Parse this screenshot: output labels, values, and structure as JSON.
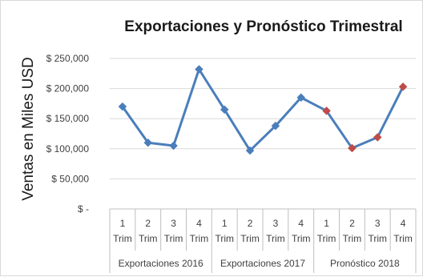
{
  "chart_data": {
    "type": "line",
    "title": "Exportaciones y Pronóstico Trimestral",
    "ylabel": "Ventas en Miles USD",
    "xlabel": "",
    "ylim": [
      0,
      250000
    ],
    "yticks": [
      0,
      50000,
      100000,
      150000,
      200000,
      250000
    ],
    "ytick_labels": [
      "$ -",
      "$ 50,000",
      "$ 100,000",
      "$ 150,000",
      "$ 200,000",
      "$ 250,000"
    ],
    "grid": true,
    "legend": "none",
    "categories": [
      {
        "line1": "1",
        "line2": "Trim"
      },
      {
        "line1": "2",
        "line2": "Trim"
      },
      {
        "line1": "3",
        "line2": "Trim"
      },
      {
        "line1": "4",
        "line2": "Trim"
      },
      {
        "line1": "1",
        "line2": "Trim"
      },
      {
        "line1": "2",
        "line2": "Trim"
      },
      {
        "line1": "3",
        "line2": "Trim"
      },
      {
        "line1": "4",
        "line2": "Trim"
      },
      {
        "line1": "1",
        "line2": "Trim"
      },
      {
        "line1": "2",
        "line2": "Trim"
      },
      {
        "line1": "3",
        "line2": "Trim"
      },
      {
        "line1": "4",
        "line2": "Trim"
      }
    ],
    "groups": [
      {
        "label": "Exportaciones 2016",
        "start": 0,
        "end": 3
      },
      {
        "label": "Exportaciones 2017",
        "start": 4,
        "end": 7
      },
      {
        "label": "Pronóstico 2018",
        "start": 8,
        "end": 11
      }
    ],
    "series": [
      {
        "values": [
          170000,
          110000,
          105000,
          232000,
          165000,
          97000,
          138000,
          185000,
          163000,
          101000,
          119000,
          203000
        ],
        "line_color": "#4a7ebb",
        "point_colors": [
          "#4a7ebb",
          "#4a7ebb",
          "#4a7ebb",
          "#4a7ebb",
          "#4a7ebb",
          "#4a7ebb",
          "#4a7ebb",
          "#4a7ebb",
          "#be4b48",
          "#be4b48",
          "#be4b48",
          "#be4b48"
        ]
      }
    ]
  }
}
